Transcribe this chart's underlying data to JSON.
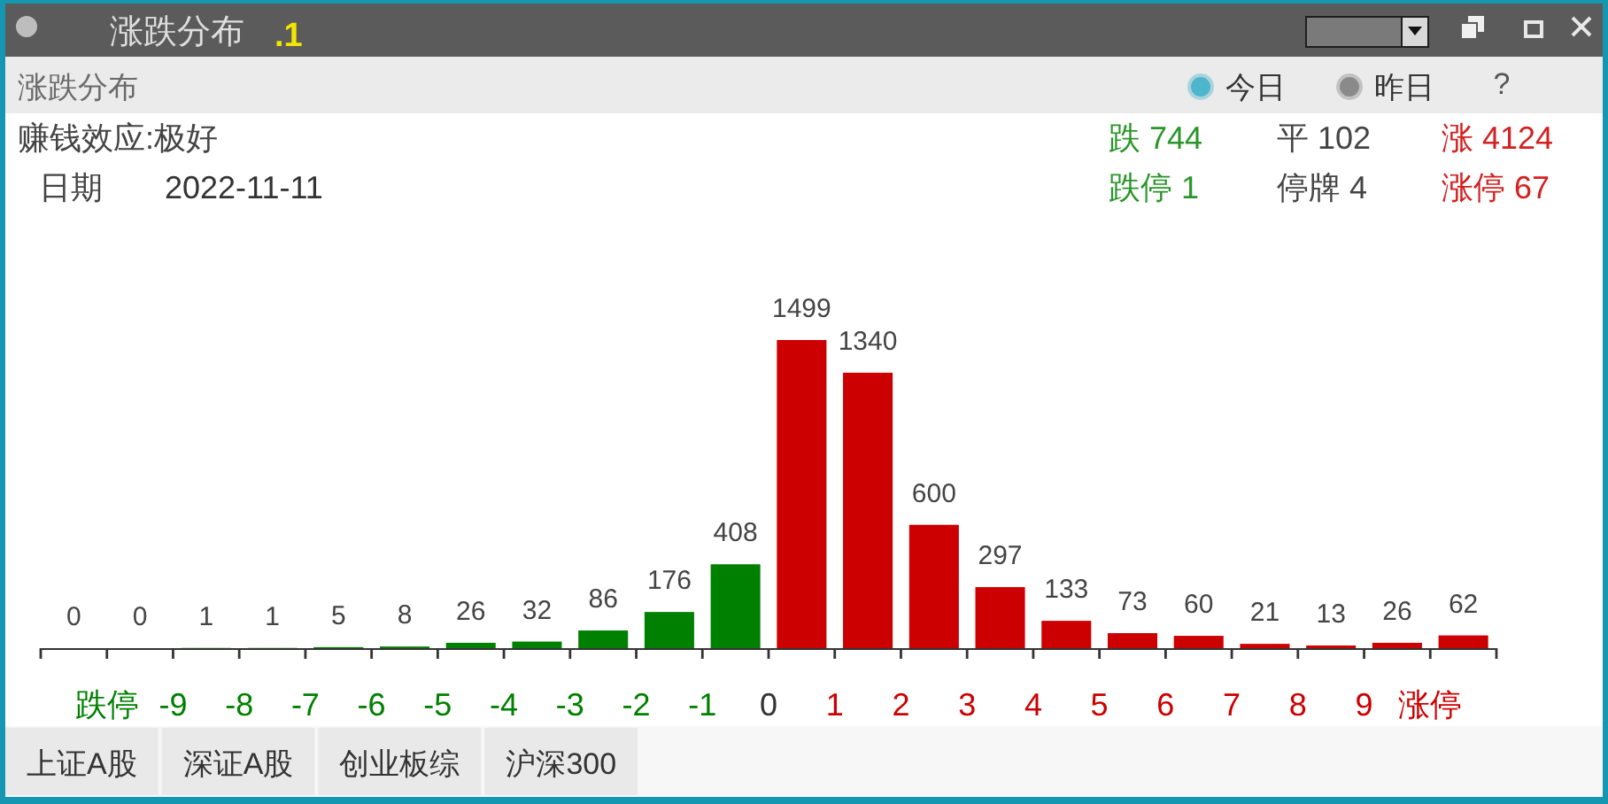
{
  "chart_data": {
    "type": "bar",
    "title": "涨跌分布",
    "subtitle": "涨跌分布",
    "annotations": [
      ".1",
      "今日",
      "昨日",
      "?",
      "赚钱效应:极好",
      "日期",
      "2022-11-11",
      "跌 744",
      "平 102",
      "涨 4124",
      "跌停 1",
      "停牌 4",
      "涨停 67",
      "上证A股",
      "深证A股",
      "创业板综",
      "沪深300"
    ],
    "x": [
      -10.5,
      -9.5,
      -8.5,
      -7.5,
      -6.5,
      -5.5,
      -4.5,
      -3.5,
      -2.5,
      -1.5,
      -0.5,
      0.5,
      1.5,
      2.5,
      3.5,
      4.5,
      5.5,
      6.5,
      7.5,
      8.5,
      9.5,
      10.5
    ],
    "values": [
      0,
      0,
      1,
      1,
      5,
      8,
      26,
      32,
      86,
      176,
      408,
      1499,
      1340,
      600,
      297,
      133,
      73,
      60,
      21,
      13,
      26,
      62
    ],
    "colors": [
      "#008000",
      "#008000",
      "#008000",
      "#008000",
      "#008000",
      "#008000",
      "#008000",
      "#008000",
      "#008000",
      "#008000",
      "#008000",
      "#cc0000",
      "#cc0000",
      "#cc0000",
      "#cc0000",
      "#cc0000",
      "#cc0000",
      "#cc0000",
      "#cc0000",
      "#cc0000",
      "#cc0000",
      "#cc0000"
    ],
    "xlim": [
      -11,
      11
    ],
    "xticks": [
      {
        "value": -11,
        "label": null
      },
      {
        "value": -10,
        "label": "跌停"
      },
      -9,
      -8,
      -7,
      -6,
      -5,
      -4,
      -3,
      -2,
      -1,
      0,
      1,
      2,
      3,
      4,
      5,
      6,
      7,
      8,
      9,
      {
        "value": 10,
        "label": "涨停"
      },
      {
        "value": 11,
        "label": null
      }
    ],
    "tick_labels": "x",
    "data_labels": true
  }
}
